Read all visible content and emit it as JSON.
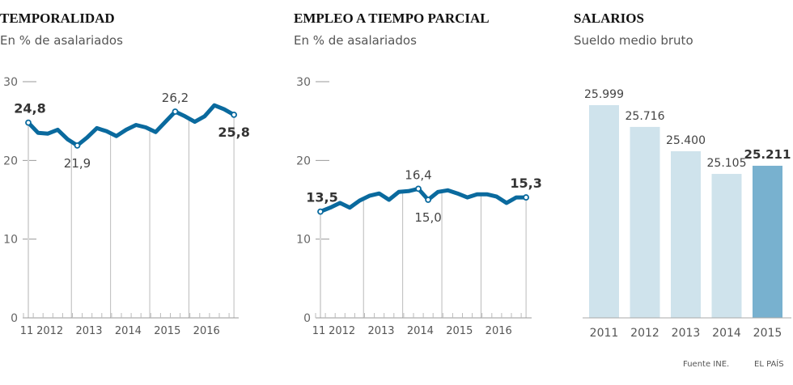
{
  "panels": {
    "temporalidad": {
      "title": "TEMPORALIDAD",
      "subtitle": "En % de asalariados"
    },
    "parcial": {
      "title": "EMPLEO A TIEMPO PARCIAL",
      "subtitle": "En % de asalariados"
    },
    "salarios": {
      "title": "SALARIOS",
      "subtitle": "Sueldo medio bruto"
    }
  },
  "footer": {
    "source": "Fuente INE.",
    "brand": "EL PAÍS"
  },
  "colors": {
    "line": "#0a6a9e",
    "bar_light": "#cfe3ec",
    "bar_highlight": "#78b1cf",
    "grid": "#bbbbbb"
  },
  "chart_data": [
    {
      "type": "line",
      "title": "TEMPORALIDAD",
      "subtitle": "En % de asalariados",
      "xlabel": "",
      "ylabel": "",
      "ylim": [
        0,
        30
      ],
      "yticks": [
        "0",
        "10",
        "20",
        "30"
      ],
      "x_labels": [
        "11",
        "2012",
        "2013",
        "2014",
        "2015",
        "2016"
      ],
      "x_start_quarter": 4,
      "series": [
        {
          "name": "Temporalidad",
          "values": [
            24.8,
            23.5,
            23.4,
            23.9,
            22.7,
            21.9,
            22.9,
            24.1,
            23.7,
            23.1,
            23.9,
            24.5,
            24.2,
            23.6,
            24.9,
            26.2,
            25.6,
            24.9,
            25.6,
            27.0,
            26.5,
            25.8
          ]
        }
      ],
      "annotations": [
        {
          "index": 0,
          "text": "24,8",
          "bold": true,
          "pos": "above"
        },
        {
          "index": 5,
          "text": "21,9",
          "bold": false,
          "pos": "below"
        },
        {
          "index": 15,
          "text": "26,2",
          "bold": false,
          "pos": "above"
        },
        {
          "index": 21,
          "text": "25,8",
          "bold": true,
          "pos": "below"
        }
      ],
      "grid": false
    },
    {
      "type": "line",
      "title": "EMPLEO A TIEMPO PARCIAL",
      "subtitle": "En % de asalariados",
      "xlabel": "",
      "ylabel": "",
      "ylim": [
        0,
        30
      ],
      "yticks": [
        "0",
        "10",
        "20",
        "30"
      ],
      "x_labels": [
        "11",
        "2012",
        "2013",
        "2014",
        "2015",
        "2016"
      ],
      "x_start_quarter": 4,
      "series": [
        {
          "name": "Empleo a tiempo parcial",
          "values": [
            13.5,
            14.0,
            14.6,
            14.0,
            14.9,
            15.5,
            15.8,
            15.0,
            16.0,
            16.1,
            16.4,
            15.0,
            16.0,
            16.2,
            15.8,
            15.3,
            15.7,
            15.7,
            15.4,
            14.6,
            15.3,
            15.3
          ]
        }
      ],
      "annotations": [
        {
          "index": 0,
          "text": "13,5",
          "bold": true,
          "pos": "above"
        },
        {
          "index": 10,
          "text": "16,4",
          "bold": false,
          "pos": "above"
        },
        {
          "index": 11,
          "text": "15,0",
          "bold": false,
          "pos": "below"
        },
        {
          "index": 21,
          "text": "15,3",
          "bold": true,
          "pos": "above"
        }
      ],
      "grid": false
    },
    {
      "type": "bar",
      "title": "SALARIOS",
      "subtitle": "Sueldo medio bruto",
      "xlabel": "",
      "ylabel": "",
      "categories": [
        "2011",
        "2012",
        "2013",
        "2014",
        "2015"
      ],
      "values": [
        25999,
        25716,
        25400,
        25105,
        25211
      ],
      "labels": [
        "25.999",
        "25.716",
        "25.400",
        "25.105",
        "25.211"
      ],
      "highlight_index": 4,
      "ylim": [
        0,
        26000
      ],
      "grid": false
    }
  ]
}
